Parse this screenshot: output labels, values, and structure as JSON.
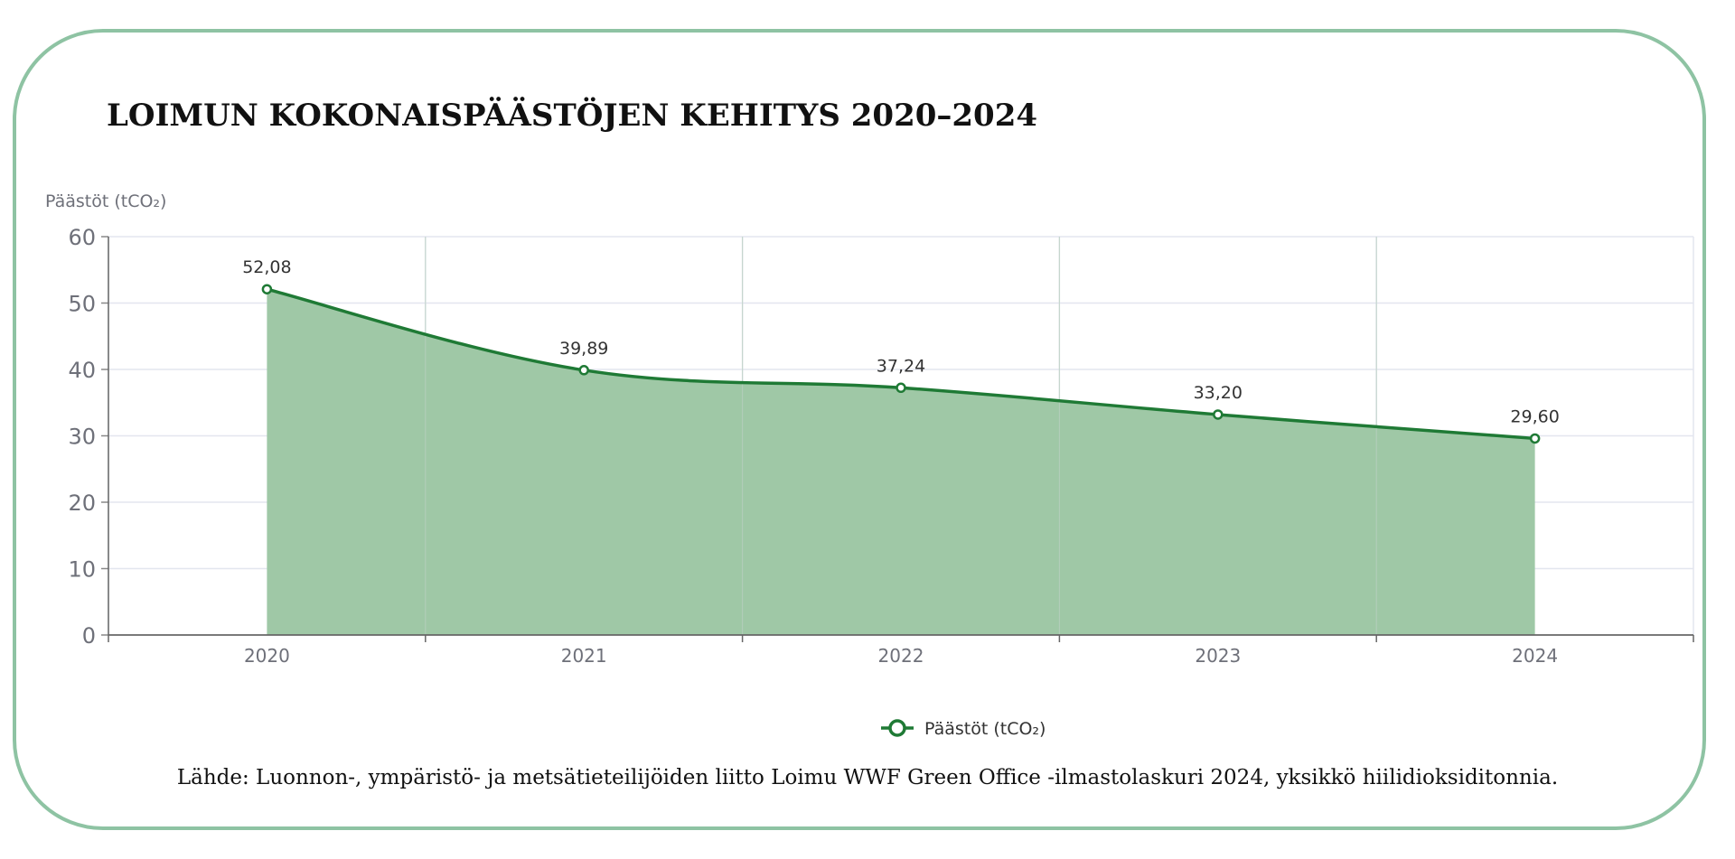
{
  "chart_data": {
    "type": "area",
    "title": "LOIMUN KOKONAISPÄÄSTÖJEN KEHITYS 2020–2024",
    "ylabel": "Päästöt (tCO₂)",
    "xlabel": "",
    "categories": [
      "2020",
      "2021",
      "2022",
      "2023",
      "2024"
    ],
    "y_ticks": [
      "0",
      "10",
      "20",
      "30",
      "40",
      "50",
      "60"
    ],
    "ylim": [
      0,
      60
    ],
    "grid": true,
    "legend_position": "bottom-center",
    "series": [
      {
        "name": "Päästöt (tCO₂)",
        "values": [
          52.08,
          39.89,
          37.24,
          33.2,
          29.6
        ],
        "labels": [
          "52,08",
          "39,89",
          "37,24",
          "33,20",
          "29,60"
        ]
      }
    ],
    "colors": {
      "line": "#1f7a35",
      "fill": "#9fc8a6",
      "border": "#8ec3a3"
    }
  },
  "source_note": "Lähde: Luonnon-, ympäristö- ja metsätieteilijöiden liitto Loimu WWF Green Office -ilmastolaskuri 2024, yksikkö hiilidioksiditonnia."
}
